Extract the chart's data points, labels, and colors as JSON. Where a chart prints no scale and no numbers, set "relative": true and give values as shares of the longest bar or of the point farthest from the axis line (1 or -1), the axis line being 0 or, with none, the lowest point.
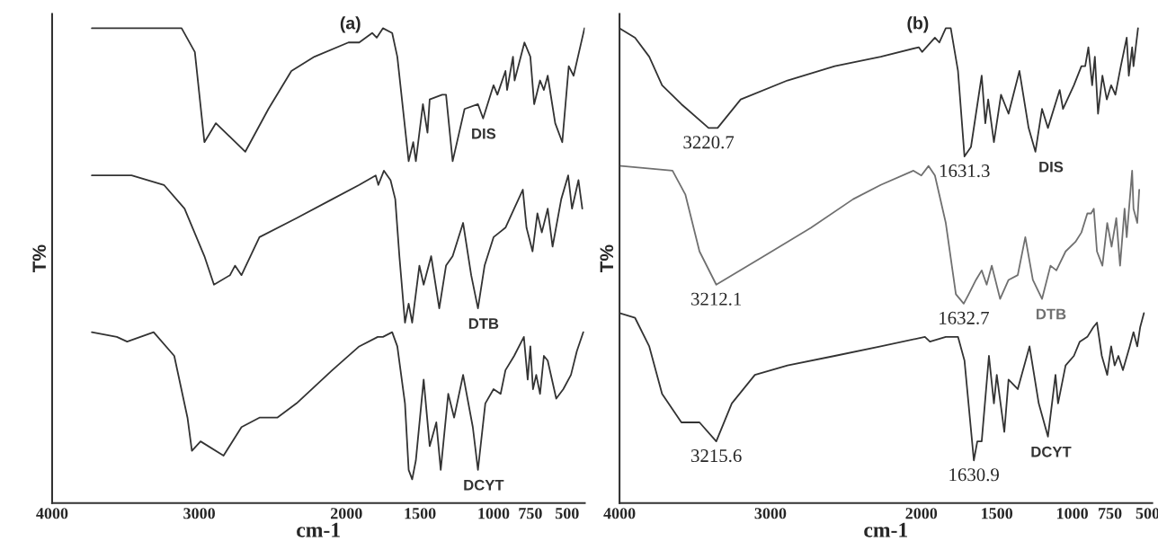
{
  "chart_data": [
    {
      "type": "line",
      "title": "(a)",
      "xlabel": "cm-1",
      "ylabel": "T%",
      "relative": true,
      "legend": false,
      "grid": false,
      "marker": "none",
      "line_style": "solid",
      "xlim": [
        4000,
        380
      ],
      "xticks": [
        4000,
        3000,
        2000,
        1500,
        1000,
        750,
        500
      ],
      "series": [
        {
          "name": "DIS",
          "color": "#333333",
          "x": [
            3730,
            3120,
            3030,
            2965,
            2887,
            2687,
            2530,
            2374,
            2217,
            1986,
            1913,
            1825,
            1794,
            1752,
            1689,
            1654,
            1577,
            1546,
            1528,
            1480,
            1449,
            1434,
            1349,
            1323,
            1278,
            1197,
            1106,
            1071,
            1000,
            974,
            919,
            908,
            868,
            857,
            790,
            750,
            724,
            684,
            658,
            632,
            581,
            533,
            489,
            456,
            382
          ],
          "values": [
            1.0,
            1.0,
            0.95,
            0.76,
            0.8,
            0.74,
            0.83,
            0.91,
            0.94,
            0.97,
            0.97,
            0.99,
            0.98,
            1.0,
            0.99,
            0.94,
            0.72,
            0.76,
            0.72,
            0.84,
            0.78,
            0.85,
            0.86,
            0.86,
            0.72,
            0.83,
            0.84,
            0.81,
            0.88,
            0.86,
            0.91,
            0.87,
            0.94,
            0.89,
            0.97,
            0.94,
            0.84,
            0.89,
            0.87,
            0.9,
            0.8,
            0.76,
            0.92,
            0.9,
            1.0
          ]
        },
        {
          "name": "DTB",
          "color": "#333333",
          "x": [
            3730,
            3460,
            3240,
            3100,
            2965,
            2900,
            2791,
            2757,
            2713,
            2591,
            2339,
            2096,
            1913,
            1801,
            1783,
            1745,
            1700,
            1668,
            1640,
            1602,
            1577,
            1553,
            1504,
            1475,
            1424,
            1369,
            1323,
            1278,
            1207,
            1152,
            1106,
            1061,
            1000,
            919,
            860,
            801,
            776,
            735,
            702,
            672,
            632,
            599,
            540,
            493,
            467,
            423,
            397
          ],
          "values": [
            0.69,
            0.69,
            0.67,
            0.62,
            0.52,
            0.46,
            0.48,
            0.5,
            0.48,
            0.56,
            0.6,
            0.64,
            0.67,
            0.69,
            0.67,
            0.7,
            0.68,
            0.64,
            0.52,
            0.38,
            0.42,
            0.38,
            0.5,
            0.46,
            0.52,
            0.41,
            0.5,
            0.52,
            0.59,
            0.48,
            0.41,
            0.5,
            0.56,
            0.58,
            0.62,
            0.66,
            0.58,
            0.53,
            0.61,
            0.57,
            0.62,
            0.54,
            0.64,
            0.69,
            0.62,
            0.68,
            0.62
          ]
        },
        {
          "name": "DCYT",
          "color": "#333333",
          "x": [
            3730,
            3560,
            3490,
            3310,
            3170,
            3080,
            3050,
            2991,
            2835,
            2713,
            2591,
            2470,
            2339,
            2096,
            1913,
            1787,
            1752,
            1689,
            1654,
            1602,
            1577,
            1553,
            1528,
            1475,
            1434,
            1389,
            1359,
            1308,
            1268,
            1207,
            1141,
            1106,
            1056,
            1000,
            952,
            919,
            860,
            794,
            768,
            750,
            732,
            710,
            684,
            658,
            632,
            574,
            526,
            474,
            434,
            390
          ],
          "values": [
            0.36,
            0.35,
            0.34,
            0.36,
            0.31,
            0.18,
            0.11,
            0.13,
            0.1,
            0.16,
            0.18,
            0.18,
            0.21,
            0.28,
            0.33,
            0.35,
            0.35,
            0.36,
            0.33,
            0.21,
            0.07,
            0.05,
            0.09,
            0.26,
            0.12,
            0.17,
            0.07,
            0.23,
            0.18,
            0.27,
            0.16,
            0.07,
            0.21,
            0.24,
            0.23,
            0.28,
            0.31,
            0.35,
            0.26,
            0.33,
            0.24,
            0.27,
            0.23,
            0.31,
            0.3,
            0.22,
            0.24,
            0.27,
            0.32,
            0.36
          ]
        }
      ]
    },
    {
      "type": "line",
      "title": "(b)",
      "xlabel": "cm-1",
      "ylabel": "T%",
      "relative": true,
      "legend": false,
      "grid": false,
      "marker": "none",
      "line_style": "solid",
      "xlim": [
        4000,
        470
      ],
      "xticks": [
        4000,
        3000,
        2000,
        1500,
        1000,
        750,
        500
      ],
      "annotations": [
        {
          "text": "3220.7",
          "x": 3410,
          "y": 0.79
        },
        {
          "text": "1631.3",
          "x": 1714,
          "y": 0.73
        },
        {
          "text": "3212.1",
          "x": 3359,
          "y": 0.46
        },
        {
          "text": "1632.7",
          "x": 1719,
          "y": 0.42
        },
        {
          "text": "3215.6",
          "x": 3359,
          "y": 0.13
        },
        {
          "text": "1630.9",
          "x": 1652,
          "y": 0.09
        }
      ],
      "series": [
        {
          "name": "DIS",
          "color": "#333333",
          "x": [
            4000,
            3897,
            3803,
            3718,
            3590,
            3410,
            3350,
            3197,
            2887,
            2574,
            2269,
            2017,
            1995,
            1910,
            1881,
            1838,
            1805,
            1757,
            1714,
            1671,
            1600,
            1576,
            1557,
            1519,
            1472,
            1422,
            1350,
            1289,
            1244,
            1200,
            1161,
            1083,
            1061,
            989,
            939,
            914,
            893,
            868,
            850,
            829,
            800,
            771,
            742,
            714,
            678,
            639,
            625,
            603,
            594,
            564
          ],
          "values": [
            1.0,
            0.98,
            0.94,
            0.88,
            0.84,
            0.79,
            0.79,
            0.85,
            0.89,
            0.92,
            0.94,
            0.96,
            0.95,
            0.98,
            0.97,
            1.0,
            1.0,
            0.91,
            0.73,
            0.75,
            0.9,
            0.8,
            0.85,
            0.76,
            0.86,
            0.82,
            0.91,
            0.79,
            0.74,
            0.83,
            0.79,
            0.87,
            0.83,
            0.88,
            0.92,
            0.92,
            0.96,
            0.88,
            0.94,
            0.82,
            0.9,
            0.85,
            0.88,
            0.86,
            0.92,
            0.98,
            0.9,
            0.96,
            0.92,
            1.0
          ]
        },
        {
          "name": "DTB",
          "color": "#707070",
          "x": [
            3991,
            3649,
            3564,
            3470,
            3359,
            3043,
            2730,
            2452,
            2269,
            2052,
            2000,
            1952,
            1910,
            1838,
            1771,
            1719,
            1686,
            1638,
            1600,
            1567,
            1533,
            1478,
            1422,
            1361,
            1311,
            1261,
            1200,
            1144,
            1105,
            1044,
            979,
            939,
            900,
            875,
            857,
            836,
            800,
            768,
            739,
            708,
            683,
            653,
            639,
            603,
            594,
            569,
            556
          ],
          "values": [
            0.71,
            0.7,
            0.65,
            0.53,
            0.46,
            0.52,
            0.58,
            0.64,
            0.67,
            0.7,
            0.69,
            0.71,
            0.69,
            0.59,
            0.44,
            0.42,
            0.44,
            0.47,
            0.49,
            0.46,
            0.5,
            0.43,
            0.47,
            0.48,
            0.56,
            0.47,
            0.43,
            0.5,
            0.49,
            0.53,
            0.55,
            0.57,
            0.61,
            0.61,
            0.62,
            0.53,
            0.5,
            0.59,
            0.54,
            0.6,
            0.5,
            0.62,
            0.56,
            0.7,
            0.62,
            0.59,
            0.66
          ]
        },
        {
          "name": "DCYT",
          "color": "#333333",
          "x": [
            4000,
            3897,
            3803,
            3718,
            3590,
            3470,
            3359,
            3256,
            3103,
            2887,
            2574,
            2269,
            1976,
            1943,
            1838,
            1757,
            1714,
            1652,
            1629,
            1600,
            1552,
            1519,
            1500,
            1450,
            1422,
            1361,
            1283,
            1222,
            1161,
            1111,
            1094,
            1044,
            989,
            950,
            900,
            861,
            836,
            804,
            768,
            742,
            719,
            694,
            664,
            619,
            594,
            569,
            550,
            525
          ],
          "values": [
            0.4,
            0.39,
            0.33,
            0.23,
            0.17,
            0.17,
            0.13,
            0.21,
            0.27,
            0.29,
            0.31,
            0.33,
            0.35,
            0.34,
            0.35,
            0.35,
            0.3,
            0.09,
            0.13,
            0.13,
            0.31,
            0.21,
            0.27,
            0.15,
            0.26,
            0.24,
            0.33,
            0.21,
            0.14,
            0.27,
            0.21,
            0.29,
            0.31,
            0.34,
            0.35,
            0.37,
            0.38,
            0.31,
            0.27,
            0.33,
            0.29,
            0.31,
            0.28,
            0.33,
            0.36,
            0.33,
            0.37,
            0.4
          ]
        }
      ]
    }
  ]
}
